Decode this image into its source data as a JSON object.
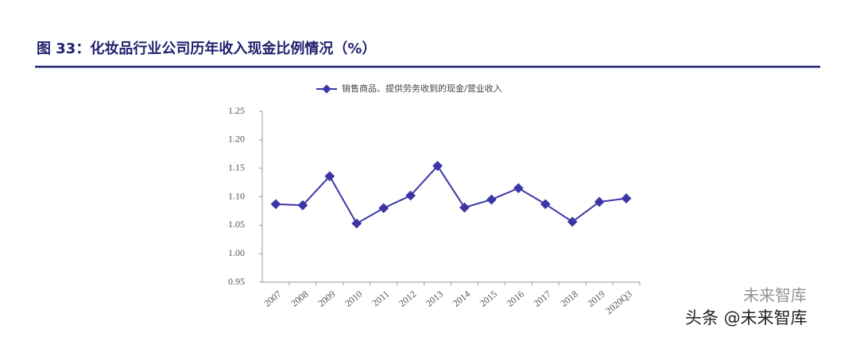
{
  "chart_data": {
    "type": "line",
    "title": "图 33：化妆品行业公司历年收入现金比例情况（%）",
    "categories": [
      "2007",
      "2008",
      "2009",
      "2010",
      "2011",
      "2012",
      "2013",
      "2014",
      "2015",
      "2016",
      "2017",
      "2018",
      "2019",
      "2020Q3"
    ],
    "series": [
      {
        "name": "销售商品、提供劳务收到的现金/营业收入",
        "color": "#3b36a6",
        "values": [
          1.087,
          1.085,
          1.136,
          1.053,
          1.08,
          1.102,
          1.154,
          1.081,
          1.095,
          1.115,
          1.087,
          1.056,
          1.091,
          1.097
        ]
      }
    ],
    "ylim": [
      0.95,
      1.25
    ],
    "yticks": [
      0.95,
      {
        "value": 1.0,
        "label": "1.00"
      },
      1.05,
      {
        "value": 1.1,
        "label": "1.10"
      },
      1.15,
      {
        "value": 1.2,
        "label": "1.20"
      },
      1.25
    ],
    "watermark": [
      "未来智库",
      "头条 @未来智库"
    ]
  }
}
